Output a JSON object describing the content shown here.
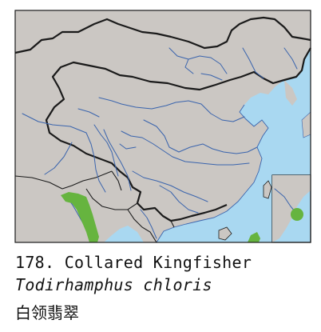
{
  "caption": {
    "line1": "178. Collared Kingfisher",
    "line2": "Todirhamphus chloris",
    "line3": "白领翡翠"
  },
  "colors": {
    "land": "#cbc7c3",
    "sea": "#a9d8f1",
    "river": "#3a64ad",
    "border": "#1a1a1a",
    "range": "#66b43f"
  }
}
